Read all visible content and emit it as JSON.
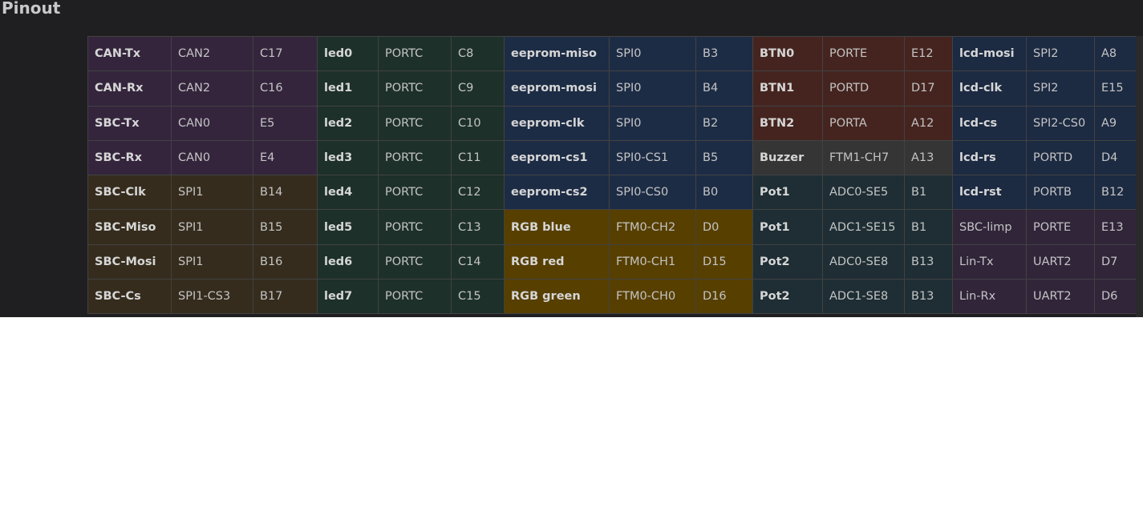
{
  "title": "Pinout",
  "colors": {
    "panel_background": "#1f1f21",
    "can_group": "#34253d",
    "spi1_group": "#352c1d",
    "led_group": "#1d302a",
    "eeprom_group": "#1d2c45",
    "button_group": "#45241f",
    "buzzer_group": "#353535",
    "pot_group": "#1e2e34",
    "rgb_group": "#573f00",
    "lcd_group": "#1c2a42",
    "misc_group": "#31253a"
  },
  "rows": [
    [
      {
        "name": "CAN-Tx",
        "port": "CAN2",
        "pin": "C17",
        "color": "purple"
      },
      {
        "name": "led0",
        "port": "PORTC",
        "pin": "C8",
        "color": "green"
      },
      {
        "name": "eeprom-miso",
        "port": "SPI0",
        "pin": "B3",
        "color": "blue"
      },
      {
        "name": "BTN0",
        "port": "PORTE",
        "pin": "E12",
        "color": "red"
      },
      {
        "name": "lcd-mosi",
        "port": "SPI2",
        "pin": "A8",
        "color": "navy"
      }
    ],
    [
      {
        "name": "CAN-Rx",
        "port": "CAN2",
        "pin": "C16",
        "color": "purple"
      },
      {
        "name": "led1",
        "port": "PORTC",
        "pin": "C9",
        "color": "green"
      },
      {
        "name": "eeprom-mosi",
        "port": "SPI0",
        "pin": "B4",
        "color": "blue"
      },
      {
        "name": "BTN1",
        "port": "PORTD",
        "pin": "D17",
        "color": "red"
      },
      {
        "name": "lcd-clk",
        "port": "SPI2",
        "pin": "E15",
        "color": "navy"
      }
    ],
    [
      {
        "name": "SBC-Tx",
        "port": "CAN0",
        "pin": "E5",
        "color": "purple"
      },
      {
        "name": "led2",
        "port": "PORTC",
        "pin": "C10",
        "color": "green"
      },
      {
        "name": "eeprom-clk",
        "port": "SPI0",
        "pin": "B2",
        "color": "blue"
      },
      {
        "name": "BTN2",
        "port": "PORTA",
        "pin": "A12",
        "color": "red"
      },
      {
        "name": "lcd-cs",
        "port": "SPI2-CS0",
        "pin": "A9",
        "color": "navy"
      }
    ],
    [
      {
        "name": "SBC-Rx",
        "port": "CAN0",
        "pin": "E4",
        "color": "purple"
      },
      {
        "name": "led3",
        "port": "PORTC",
        "pin": "C11",
        "color": "green"
      },
      {
        "name": "eeprom-cs1",
        "port": "SPI0-CS1",
        "pin": "B5",
        "color": "blue"
      },
      {
        "name": "Buzzer",
        "port": "FTM1-CH7",
        "pin": "A13",
        "color": "gray"
      },
      {
        "name": "lcd-rs",
        "port": "PORTD",
        "pin": "D4",
        "color": "navy"
      }
    ],
    [
      {
        "name": "SBC-Clk",
        "port": "SPI1",
        "pin": "B14",
        "color": "olive"
      },
      {
        "name": "led4",
        "port": "PORTC",
        "pin": "C12",
        "color": "green"
      },
      {
        "name": "eeprom-cs2",
        "port": "SPI0-CS0",
        "pin": "B0",
        "color": "blue"
      },
      {
        "name": "Pot1",
        "port": "ADC0-SE5",
        "pin": "B1",
        "color": "teal"
      },
      {
        "name": "lcd-rst",
        "port": "PORTB",
        "pin": "B12",
        "color": "navy"
      }
    ],
    [
      {
        "name": "SBC-Miso",
        "port": "SPI1",
        "pin": "B15",
        "color": "olive"
      },
      {
        "name": "led5",
        "port": "PORTC",
        "pin": "C13",
        "color": "green"
      },
      {
        "name": "RGB blue",
        "port": "FTM0-CH2",
        "pin": "D0",
        "color": "amber"
      },
      {
        "name": "Pot1",
        "port": "ADC1-SE15",
        "pin": "B1",
        "color": "teal"
      },
      {
        "name": "SBC-limp",
        "port": "PORTE",
        "pin": "E13",
        "color": "plum",
        "plain": true
      }
    ],
    [
      {
        "name": "SBC-Mosi",
        "port": "SPI1",
        "pin": "B16",
        "color": "olive"
      },
      {
        "name": "led6",
        "port": "PORTC",
        "pin": "C14",
        "color": "green"
      },
      {
        "name": "RGB red",
        "port": "FTM0-CH1",
        "pin": "D15",
        "color": "amber"
      },
      {
        "name": "Pot2",
        "port": "ADC0-SE8",
        "pin": "B13",
        "color": "teal"
      },
      {
        "name": "Lin-Tx",
        "port": "UART2",
        "pin": "D7",
        "color": "plum",
        "plain": true
      }
    ],
    [
      {
        "name": "SBC-Cs",
        "port": "SPI1-CS3",
        "pin": "B17",
        "color": "olive"
      },
      {
        "name": "led7",
        "port": "PORTC",
        "pin": "C15",
        "color": "green"
      },
      {
        "name": "RGB green",
        "port": "FTM0-CH0",
        "pin": "D16",
        "color": "amber"
      },
      {
        "name": "Pot2",
        "port": "ADC1-SE8",
        "pin": "B13",
        "color": "teal"
      },
      {
        "name": "Lin-Rx",
        "port": "UART2",
        "pin": "D6",
        "color": "plum",
        "plain": true
      }
    ]
  ]
}
